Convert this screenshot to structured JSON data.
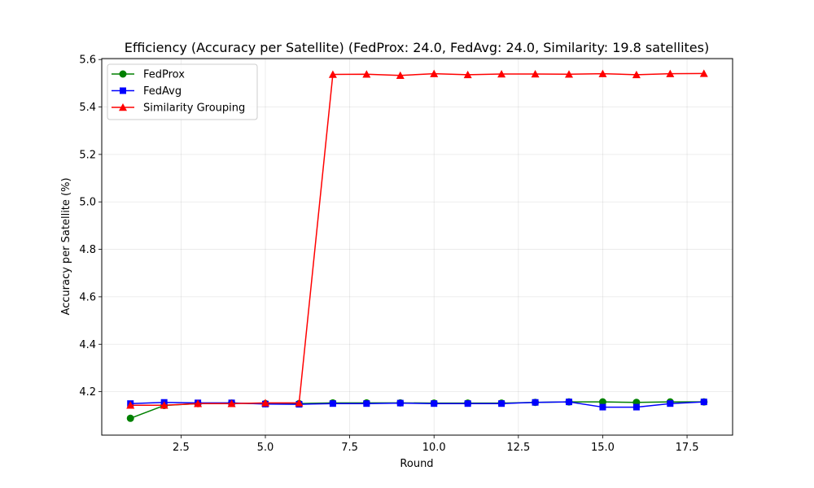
{
  "chart_data": {
    "type": "line",
    "title": "Efficiency (Accuracy per Satellite) (FedProx: 24.0, FedAvg: 24.0, Similarity: 19.8 satellites)",
    "xlabel": "Round",
    "ylabel": "Accuracy per Satellite (%)",
    "xlim": [
      0.15,
      18.85
    ],
    "ylim": [
      4.017,
      5.604
    ],
    "xticks": [
      2.5,
      5.0,
      7.5,
      10.0,
      12.5,
      15.0,
      17.5
    ],
    "xtick_labels": [
      "2.5",
      "5.0",
      "7.5",
      "10.0",
      "12.5",
      "15.0",
      "17.5"
    ],
    "yticks": [
      4.2,
      4.4,
      4.6,
      4.8,
      5.0,
      5.2,
      5.4,
      5.6
    ],
    "ytick_labels": [
      "4.2",
      "4.4",
      "4.6",
      "4.8",
      "5.0",
      "5.2",
      "5.4",
      "5.6"
    ],
    "grid": true,
    "legend_position": "top-left",
    "x": [
      1,
      2,
      3,
      4,
      5,
      6,
      7,
      8,
      9,
      10,
      11,
      12,
      13,
      14,
      15,
      16,
      17,
      18
    ],
    "series": [
      {
        "name": "FedProx",
        "color": "#008000",
        "marker": "circle",
        "values": [
          4.088,
          4.142,
          4.15,
          4.152,
          4.15,
          4.15,
          4.153,
          4.153,
          4.153,
          4.152,
          4.152,
          4.152,
          4.155,
          4.157,
          4.157,
          4.155,
          4.157,
          4.157
        ]
      },
      {
        "name": "FedAvg",
        "color": "#0000ff",
        "marker": "square",
        "values": [
          4.15,
          4.155,
          4.153,
          4.153,
          4.148,
          4.147,
          4.15,
          4.15,
          4.152,
          4.15,
          4.15,
          4.15,
          4.155,
          4.157,
          4.135,
          4.135,
          4.15,
          4.157
        ]
      },
      {
        "name": "Similarity Grouping",
        "color": "#ff0000",
        "marker": "triangle",
        "values": [
          4.143,
          4.143,
          4.15,
          4.15,
          4.153,
          4.153,
          5.537,
          5.538,
          5.533,
          5.54,
          5.536,
          5.539,
          5.539,
          5.538,
          5.54,
          5.536,
          5.54,
          5.541
        ]
      }
    ]
  }
}
